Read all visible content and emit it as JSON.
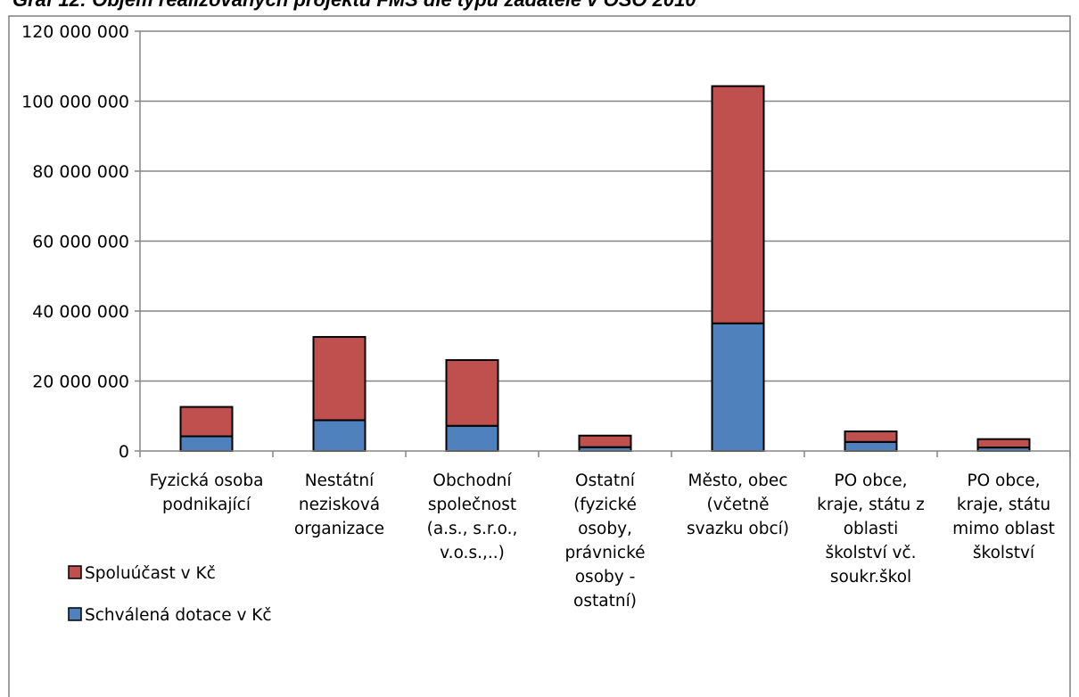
{
  "title": "Graf 12: Objem realizovaných projektů FMS dle typu žadatele v OSO 2010",
  "chart_data": {
    "type": "bar",
    "stacked": true,
    "categories": [
      [
        "Fyzická osoba",
        "podnikající"
      ],
      [
        "Nestátní",
        "nezisková",
        "organizace"
      ],
      [
        "Obchodní",
        "společnost",
        "(a.s., s.r.o.,",
        "v.o.s.,..)"
      ],
      [
        "Ostatní",
        "(fyzické",
        "osoby,",
        "právnické",
        "osoby -",
        "ostatní)"
      ],
      [
        "Město, obec",
        "(včetně",
        "svazku obcí)"
      ],
      [
        "PO obce,",
        "kraje, státu z",
        "oblasti",
        "školství vč.",
        "soukr.škol"
      ],
      [
        "PO obce,",
        "kraje, státu",
        "mimo oblast",
        "školství"
      ]
    ],
    "series": [
      {
        "name": "Schválená dotace v Kč",
        "color": "#4f81bd",
        "values": [
          4200000,
          8800000,
          7200000,
          1100000,
          36500000,
          2600000,
          1000000
        ]
      },
      {
        "name": "Spoluúčast v Kč",
        "color": "#c0504d",
        "values": [
          8400000,
          23800000,
          18800000,
          3300000,
          67800000,
          3000000,
          2400000
        ]
      }
    ],
    "ylim": [
      0,
      120000000
    ],
    "y_ticks": [
      "0",
      "20 000 000",
      "40 000 000",
      "60 000 000",
      "80 000 000",
      "100 000 000",
      "120 000 000"
    ],
    "grid": true,
    "legend_placement": "bottom-left",
    "legend_order": [
      "Spoluúčast v Kč",
      "Schválená dotace v Kč"
    ]
  }
}
